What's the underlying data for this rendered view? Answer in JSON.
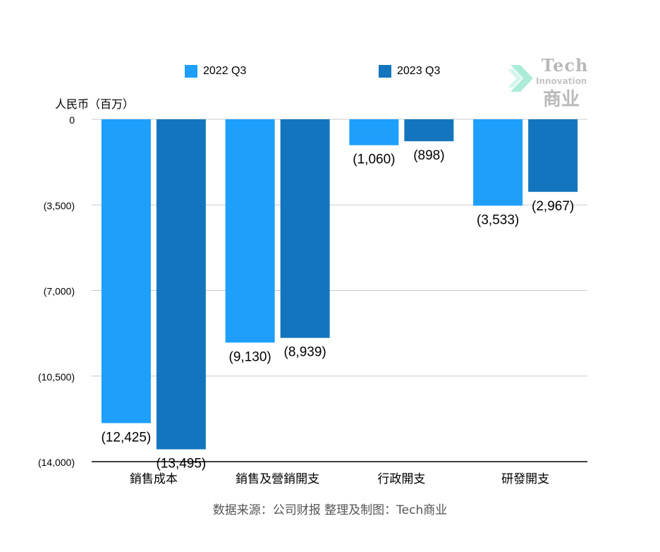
{
  "chart_data": {
    "type": "bar",
    "categories": [
      "銷售成本",
      "銷售及營銷開支",
      "行政開支",
      "研發開支"
    ],
    "series": [
      {
        "name": "2022 Q3",
        "color": "#1f9ffc",
        "values": [
          -12425,
          -9130,
          -1060,
          -3533
        ],
        "labels": [
          "(12,425)",
          "(9,130)",
          "(1,060)",
          "(3,533)"
        ]
      },
      {
        "name": "2023 Q3",
        "color": "#1375bd",
        "values": [
          -13495,
          -8939,
          -898,
          -2967
        ],
        "labels": [
          "(13,495)",
          "(8,939)",
          "(898)",
          "(2,967)"
        ]
      }
    ],
    "ylabel": "人民币（百万）",
    "ylim": [
      -14000,
      0
    ],
    "yticks": [
      0,
      -3500,
      -7000,
      -10500,
      -14000
    ],
    "ytick_labels": [
      "0",
      "(3,500)",
      "(7,000)",
      "(10,500)",
      "(14,000)"
    ],
    "grid": true,
    "legend_position": "top"
  },
  "source_text": "数据来源：公司财报 整理及制图：Tech商业",
  "watermark": {
    "line1": "Tech",
    "line2": "Innovation",
    "line3": "商业"
  }
}
